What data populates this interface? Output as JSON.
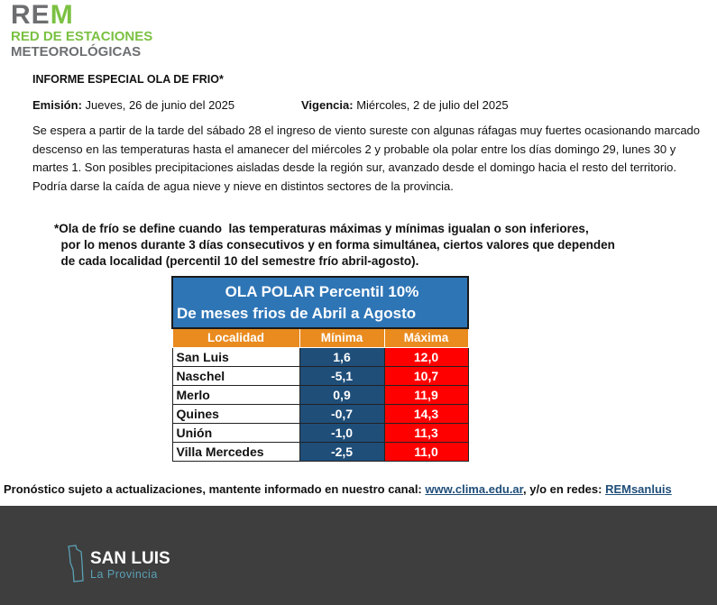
{
  "logo": {
    "rem_gray": "RE",
    "rem_green": "M",
    "line2": "RED DE ESTACIONES",
    "line3": "METEOROLÓGICAS"
  },
  "report": {
    "title": "INFORME ESPECIAL OLA DE FRIO*",
    "emision_label": "Emisión:",
    "emision_value": "Jueves, 26 de junio del 2025",
    "vigencia_label": "Vigencia:",
    "vigencia_value": "Miércoles, 2 de julio del 2025",
    "paragraph": "Se espera a partir de la tarde del sábado 28 el ingreso de viento sureste con algunas ráfagas muy fuertes ocasionando marcado descenso en las temperaturas hasta el amanecer del miércoles 2 y probable ola polar entre los días domingo 29, lunes 30 y martes 1. Son posibles precipitaciones aisladas desde la región sur, avanzado desde el domingo hacia el resto del territorio. Podría darse la caída de agua nieve y nieve en distintos sectores de la provincia.",
    "note": "*Ola de frío se define cuando  las temperaturas máximas y mínimas igualan o son inferiores,\n  por lo menos durante 3 días consecutivos y en forma simultánea, ciertos valores que dependen\n  de cada localidad (percentil 10 del semestre frío abril-agosto)."
  },
  "table": {
    "title1": "OLA POLAR   Percentil 10%",
    "title2": "De meses frios de Abril a Agosto",
    "headers": [
      "Localidad",
      "Mínima",
      "Máxima"
    ],
    "rows": [
      [
        "San Luis",
        "1,6",
        "12,0"
      ],
      [
        "Naschel",
        "-5,1",
        "10,7"
      ],
      [
        "Merlo",
        "0,9",
        "11,9"
      ],
      [
        "Quines",
        "-0,7",
        "14,3"
      ],
      [
        "Unión",
        "-1,0",
        "11,3"
      ],
      [
        "Villa Mercedes",
        "-2,5",
        "11,0"
      ]
    ]
  },
  "footer": {
    "text1": "Pronóstico sujeto a actualizaciones, mantente informado en nuestro canal: ",
    "link1": "www.clima.edu.ar",
    "text2": ", y/o en redes: ",
    "link2": "REMsanluis"
  },
  "brand": {
    "name": "SAN LUIS",
    "sub": "La Provincia"
  }
}
